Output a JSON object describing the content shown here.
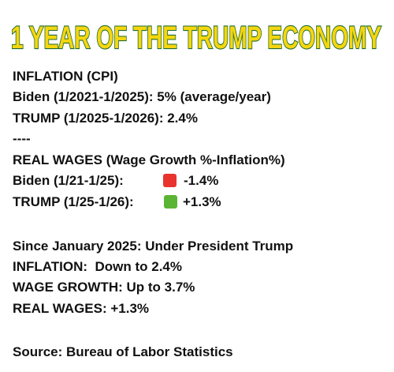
{
  "title": "1 YEAR OF THE TRUMP ECONOMY",
  "inflation": {
    "heading": "INFLATION (CPI)",
    "lines": [
      "Biden (1/2021-1/2025): 5% (average/year)",
      "TRUMP (1/2025-1/2026): 2.4%"
    ]
  },
  "separator": "----",
  "real_wages": {
    "heading": "REAL WAGES (Wage Growth %-Inflation%)",
    "rows": [
      {
        "label": "Biden (1/21-1/25):",
        "value": "-1.4%"
      },
      {
        "label": "TRUMP (1/25-1/26):",
        "value": "+1.3%"
      }
    ]
  },
  "summary": {
    "heading": "Since January 2025: Under President Trump",
    "lines": [
      "INFLATION:  Down to 2.4%",
      "WAGE GROWTH: Up to 3.7%",
      "REAL WAGES: +1.3%"
    ]
  },
  "source": "Source: Bureau of Labor Statistics"
}
